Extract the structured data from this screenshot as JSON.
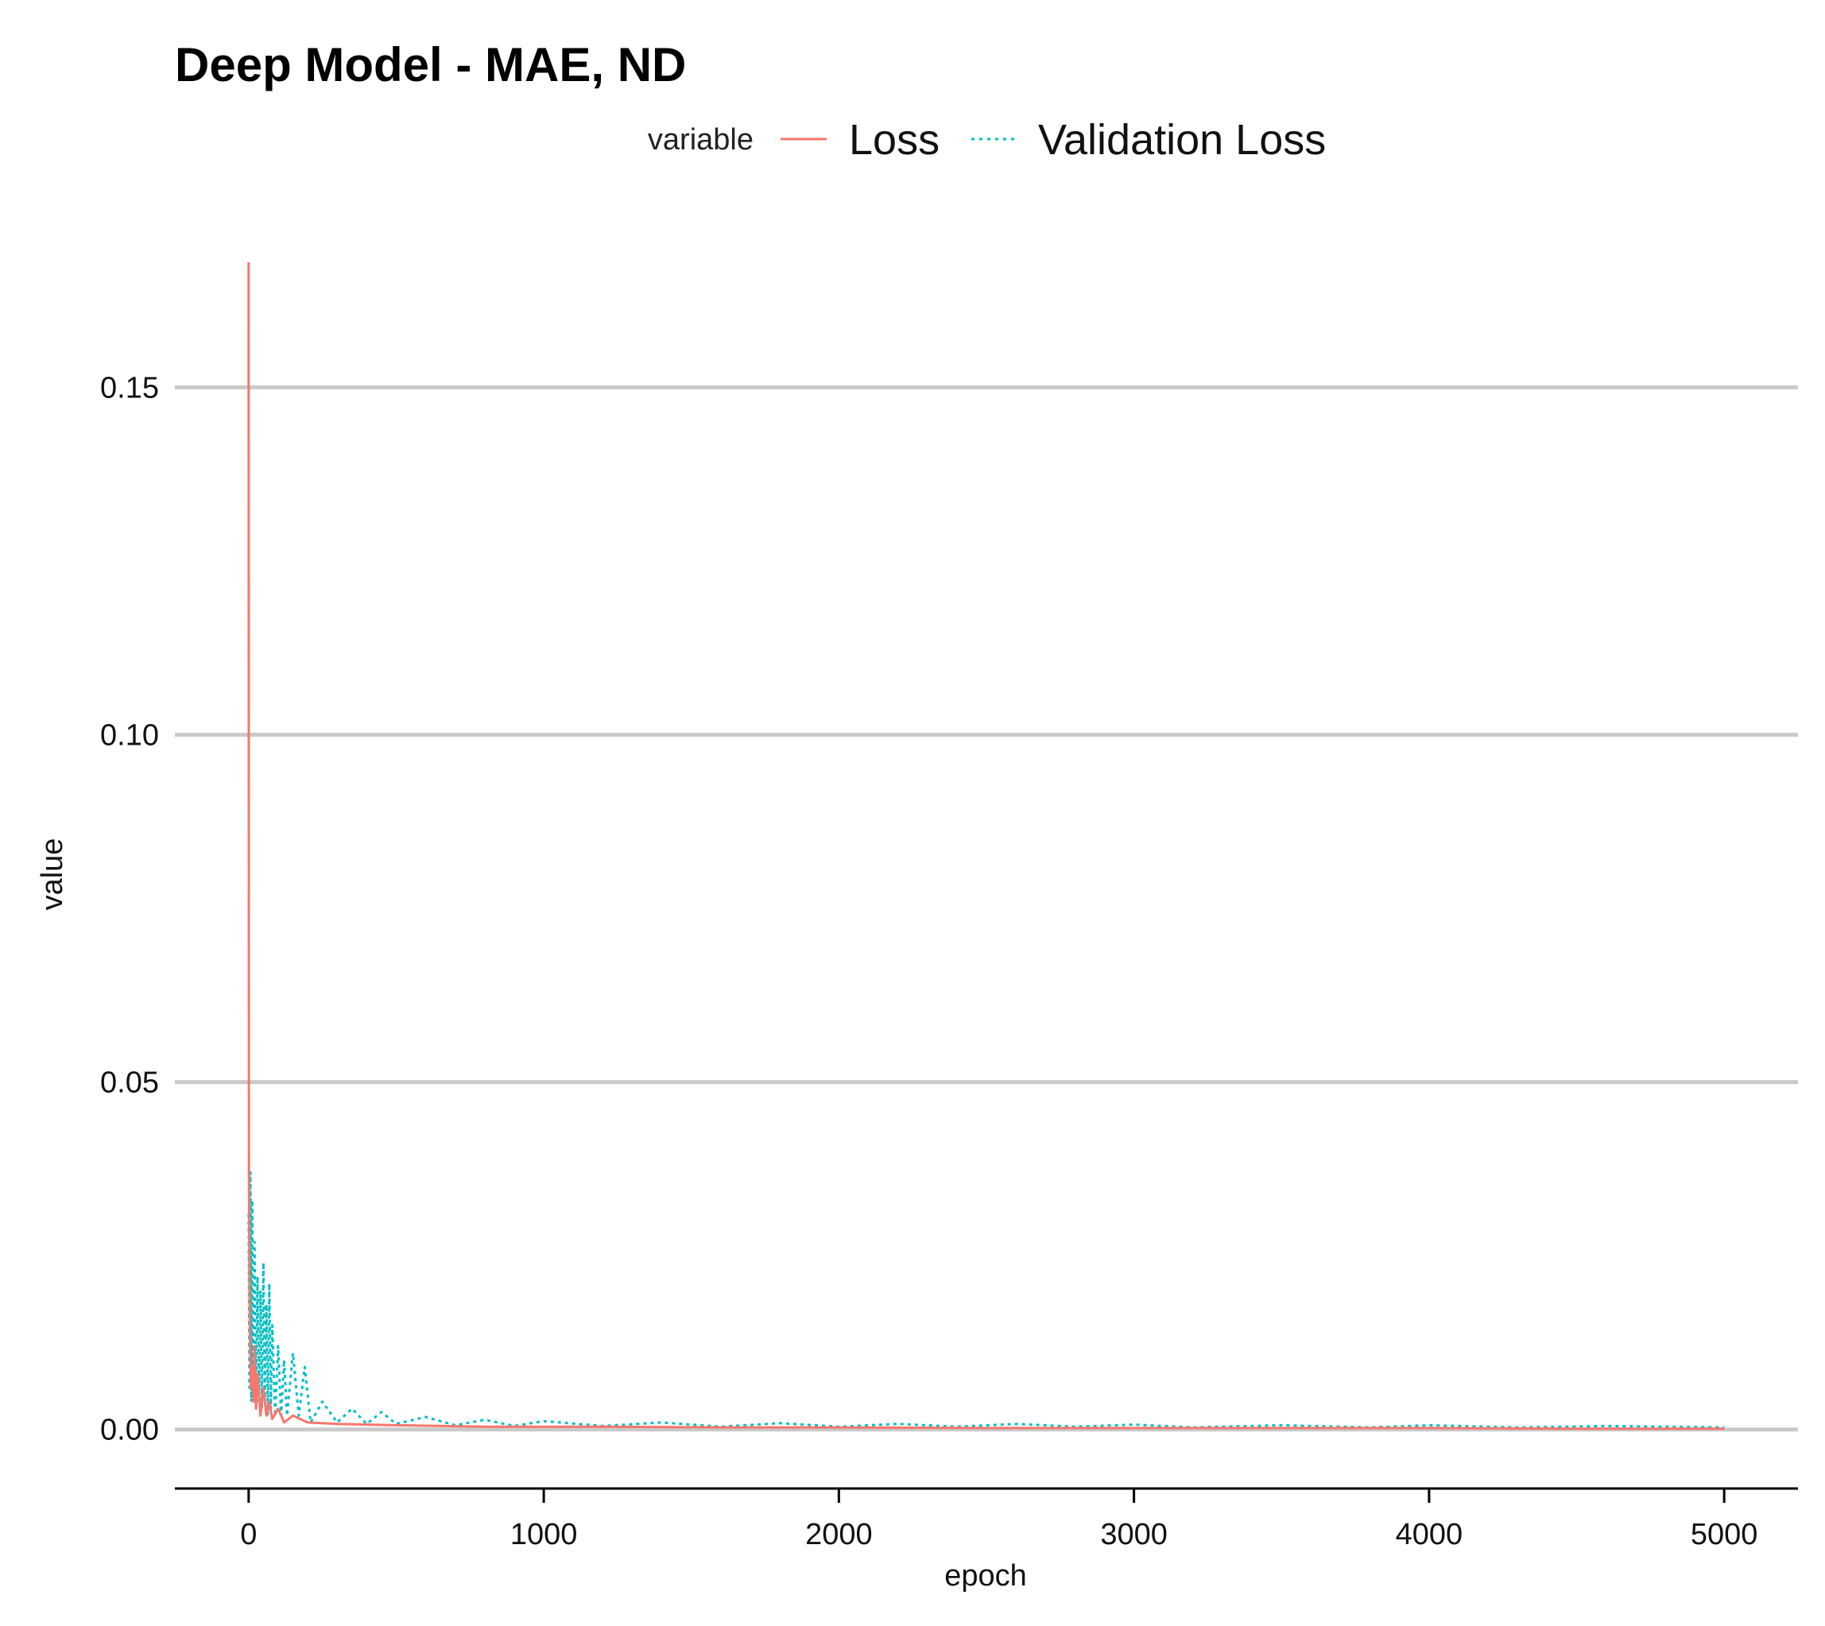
{
  "chart_data": {
    "type": "line",
    "title": "Deep Model - MAE, ND",
    "xlabel": "epoch",
    "ylabel": "value",
    "legend": {
      "title": "variable",
      "position": "top",
      "entries": [
        {
          "name": "Loss",
          "color": "#F8766D",
          "style": "solid"
        },
        {
          "name": "Validation Loss",
          "color": "#00BFC4",
          "style": "dotted"
        }
      ]
    },
    "xlim": [
      -250,
      5250
    ],
    "ylim": [
      -0.0085,
      0.168
    ],
    "x_ticks": [
      0,
      1000,
      2000,
      3000,
      4000,
      5000
    ],
    "x_tick_labels": [
      "0",
      "1000",
      "2000",
      "3000",
      "4000",
      "5000"
    ],
    "y_ticks": [
      0.0,
      0.05,
      0.1,
      0.15
    ],
    "y_tick_labels": [
      "0.00",
      "0.05",
      "0.10",
      "0.15"
    ],
    "grid": {
      "horizontal": true,
      "vertical": false
    },
    "series": [
      {
        "name": "Loss",
        "color": "#F8766D",
        "line_style": "solid",
        "points": [
          [
            0,
            0.168
          ],
          [
            1,
            0.037
          ],
          [
            3,
            0.02
          ],
          [
            5,
            0.012
          ],
          [
            8,
            0.006
          ],
          [
            12,
            0.009
          ],
          [
            16,
            0.004
          ],
          [
            20,
            0.012
          ],
          [
            25,
            0.003
          ],
          [
            30,
            0.008
          ],
          [
            40,
            0.002
          ],
          [
            50,
            0.006
          ],
          [
            60,
            0.002
          ],
          [
            70,
            0.004
          ],
          [
            80,
            0.0015
          ],
          [
            100,
            0.003
          ],
          [
            120,
            0.001
          ],
          [
            150,
            0.002
          ],
          [
            200,
            0.001
          ],
          [
            300,
            0.0008
          ],
          [
            500,
            0.0006
          ],
          [
            800,
            0.0004
          ],
          [
            1200,
            0.0004
          ],
          [
            1600,
            0.0003
          ],
          [
            2000,
            0.0003
          ],
          [
            2500,
            0.0002
          ],
          [
            3000,
            0.0002
          ],
          [
            3500,
            0.0002
          ],
          [
            4000,
            0.0002
          ],
          [
            4500,
            0.0001
          ],
          [
            5000,
            0.0001
          ]
        ]
      },
      {
        "name": "Validation Loss",
        "color": "#00BFC4",
        "line_style": "dotted",
        "points": [
          [
            0,
            0.031
          ],
          [
            3,
            0.006
          ],
          [
            6,
            0.037
          ],
          [
            9,
            0.004
          ],
          [
            12,
            0.033
          ],
          [
            15,
            0.005
          ],
          [
            20,
            0.027
          ],
          [
            25,
            0.003
          ],
          [
            30,
            0.022
          ],
          [
            35,
            0.004
          ],
          [
            40,
            0.02
          ],
          [
            45,
            0.003
          ],
          [
            50,
            0.024
          ],
          [
            55,
            0.004
          ],
          [
            60,
            0.018
          ],
          [
            65,
            0.002
          ],
          [
            70,
            0.021
          ],
          [
            75,
            0.003
          ],
          [
            80,
            0.015
          ],
          [
            90,
            0.002
          ],
          [
            100,
            0.012
          ],
          [
            110,
            0.002
          ],
          [
            120,
            0.01
          ],
          [
            130,
            0.002
          ],
          [
            150,
            0.011
          ],
          [
            170,
            0.002
          ],
          [
            190,
            0.009
          ],
          [
            210,
            0.001
          ],
          [
            250,
            0.004
          ],
          [
            300,
            0.001
          ],
          [
            350,
            0.003
          ],
          [
            400,
            0.0008
          ],
          [
            450,
            0.0025
          ],
          [
            500,
            0.0008
          ],
          [
            600,
            0.0018
          ],
          [
            700,
            0.0006
          ],
          [
            800,
            0.0014
          ],
          [
            900,
            0.0005
          ],
          [
            1000,
            0.0012
          ],
          [
            1200,
            0.0005
          ],
          [
            1400,
            0.001
          ],
          [
            1600,
            0.0004
          ],
          [
            1800,
            0.0009
          ],
          [
            2000,
            0.0004
          ],
          [
            2200,
            0.0008
          ],
          [
            2400,
            0.0004
          ],
          [
            2600,
            0.0008
          ],
          [
            2800,
            0.0004
          ],
          [
            3000,
            0.0007
          ],
          [
            3200,
            0.0003
          ],
          [
            3500,
            0.0006
          ],
          [
            3800,
            0.0003
          ],
          [
            4000,
            0.0006
          ],
          [
            4300,
            0.0003
          ],
          [
            4600,
            0.0005
          ],
          [
            5000,
            0.0003
          ]
        ]
      }
    ]
  }
}
